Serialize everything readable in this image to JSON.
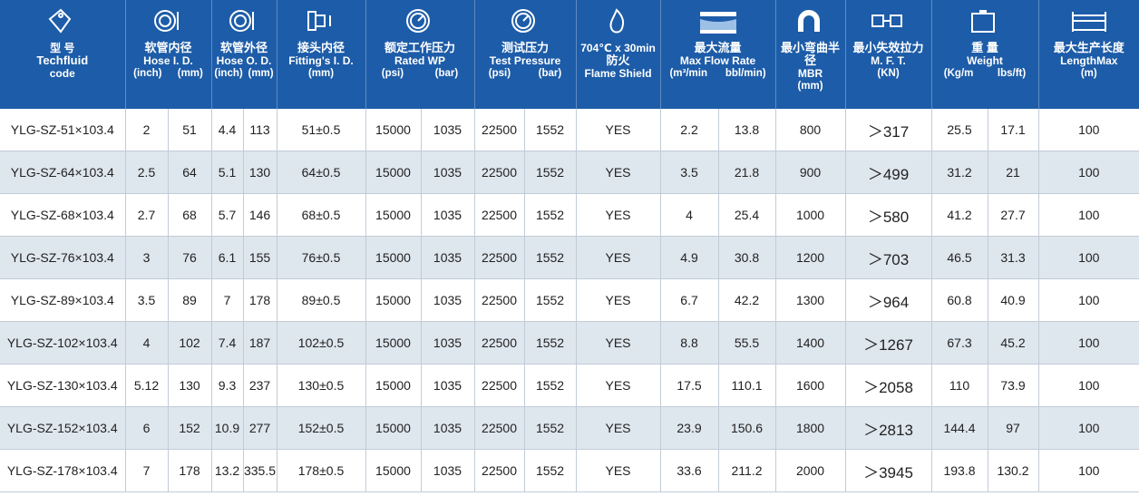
{
  "header": {
    "groups": [
      {
        "lines": [
          "型 号",
          "Techfluid",
          "code"
        ]
      },
      {
        "lines": [
          "软管内径",
          "Hose I. D."
        ],
        "units": [
          "(inch)",
          "(mm)"
        ]
      },
      {
        "lines": [
          "软管外径",
          "Hose O. D."
        ],
        "units": [
          "(inch)",
          "(mm)"
        ]
      },
      {
        "lines": [
          "接头内径",
          "Fitting's I. D."
        ],
        "units": [
          "(mm)"
        ]
      },
      {
        "lines": [
          "额定工作压力",
          "Rated WP"
        ],
        "units": [
          "(psi)",
          "(bar)"
        ]
      },
      {
        "lines": [
          "测试压力",
          "Test Pressure"
        ],
        "units": [
          "(psi)",
          "(bar)"
        ]
      },
      {
        "lines": [
          "704℃ x 30min",
          "防火",
          "Flame Shield"
        ]
      },
      {
        "lines": [
          "最大流量",
          "Max Flow Rate"
        ],
        "units": [
          "(m³/min",
          "bbl/min)"
        ]
      },
      {
        "lines": [
          "最小弯曲半径",
          "MBR"
        ],
        "units": [
          "(mm)"
        ]
      },
      {
        "lines": [
          "最小失效拉力",
          "M. F. T."
        ],
        "units": [
          "(KN)"
        ]
      },
      {
        "lines": [
          "重 量",
          "Weight"
        ],
        "units": [
          "(Kg/m",
          "lbs/ft)"
        ]
      },
      {
        "lines": [
          "最大生产长度",
          "LengthMax"
        ],
        "units": [
          "(m)"
        ]
      }
    ]
  },
  "table": {
    "rows": [
      [
        "YLG-SZ-51×103.4",
        "2",
        "51",
        "4.4",
        "113",
        "51±0.5",
        "15000",
        "1035",
        "22500",
        "1552",
        "YES",
        "2.2",
        "13.8",
        "800",
        "＞317",
        "25.5",
        "17.1",
        "100"
      ],
      [
        "YLG-SZ-64×103.4",
        "2.5",
        "64",
        "5.1",
        "130",
        "64±0.5",
        "15000",
        "1035",
        "22500",
        "1552",
        "YES",
        "3.5",
        "21.8",
        "900",
        "＞499",
        "31.2",
        "21",
        "100"
      ],
      [
        "YLG-SZ-68×103.4",
        "2.7",
        "68",
        "5.7",
        "146",
        "68±0.5",
        "15000",
        "1035",
        "22500",
        "1552",
        "YES",
        "4",
        "25.4",
        "1000",
        "＞580",
        "41.2",
        "27.7",
        "100"
      ],
      [
        "YLG-SZ-76×103.4",
        "3",
        "76",
        "6.1",
        "155",
        "76±0.5",
        "15000",
        "1035",
        "22500",
        "1552",
        "YES",
        "4.9",
        "30.8",
        "1200",
        "＞703",
        "46.5",
        "31.3",
        "100"
      ],
      [
        "YLG-SZ-89×103.4",
        "3.5",
        "89",
        "7",
        "178",
        "89±0.5",
        "15000",
        "1035",
        "22500",
        "1552",
        "YES",
        "6.7",
        "42.2",
        "1300",
        "＞964",
        "60.8",
        "40.9",
        "100"
      ],
      [
        "YLG-SZ-102×103.4",
        "4",
        "102",
        "7.4",
        "187",
        "102±0.5",
        "15000",
        "1035",
        "22500",
        "1552",
        "YES",
        "8.8",
        "55.5",
        "1400",
        "＞1267",
        "67.3",
        "45.2",
        "100"
      ],
      [
        "YLG-SZ-130×103.4",
        "5.12",
        "130",
        "9.3",
        "237",
        "130±0.5",
        "15000",
        "1035",
        "22500",
        "1552",
        "YES",
        "17.5",
        "110.1",
        "1600",
        "＞2058",
        "110",
        "73.9",
        "100"
      ],
      [
        "YLG-SZ-152×103.4",
        "6",
        "152",
        "10.9",
        "277",
        "152±0.5",
        "15000",
        "1035",
        "22500",
        "1552",
        "YES",
        "23.9",
        "150.6",
        "1800",
        "＞2813",
        "144.4",
        "97",
        "100"
      ],
      [
        "YLG-SZ-178×103.4",
        "7",
        "178",
        "13.2",
        "335.5",
        "178±0.5",
        "15000",
        "1035",
        "22500",
        "1552",
        "YES",
        "33.6",
        "211.2",
        "2000",
        "＞3945",
        "193.8",
        "130.2",
        "100"
      ]
    ]
  }
}
